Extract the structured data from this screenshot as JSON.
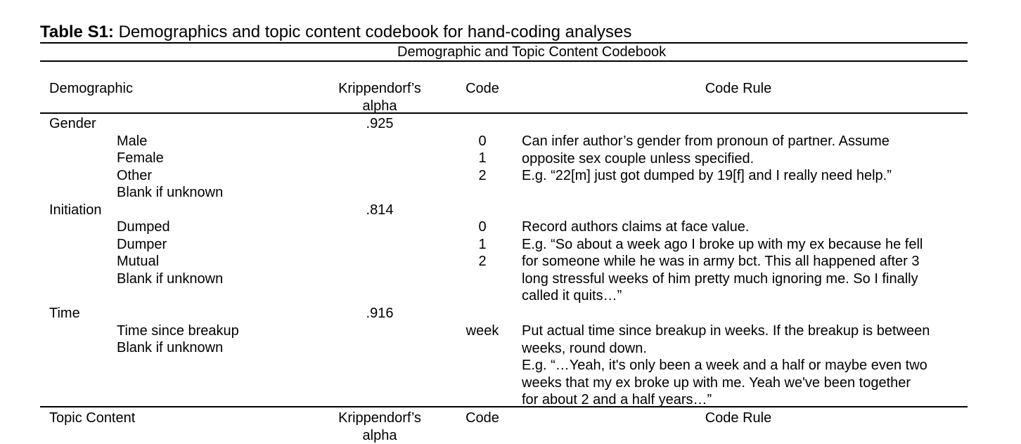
{
  "table_label": "Table S1:",
  "table_title": "Demographics and topic content codebook for hand-coding analyses",
  "subtitle": "Demographic and Topic Content Codebook",
  "header": {
    "col_demographic": "Demographic",
    "col_alpha_line1": "Krippendorf’s",
    "col_alpha_line2": "alpha",
    "col_code": "Code",
    "col_rule": "Code Rule"
  },
  "gender": {
    "name": "Gender",
    "alpha": ".925",
    "options": [
      {
        "label": "Male",
        "code": "0"
      },
      {
        "label": "Female",
        "code": "1"
      },
      {
        "label": "Other",
        "code": "2"
      },
      {
        "label": "Blank if unknown",
        "code": ""
      }
    ],
    "rule_lines": [
      "Can infer author’s gender from pronoun of partner. Assume",
      "opposite sex couple unless specified.",
      "E.g. “22[m] just got dumped by 19[f] and I really need help.”"
    ]
  },
  "initiation": {
    "name": "Initiation",
    "alpha": ".814",
    "options": [
      {
        "label": "Dumped",
        "code": "0"
      },
      {
        "label": "Dumper",
        "code": "1"
      },
      {
        "label": "Mutual",
        "code": "2"
      },
      {
        "label": "Blank if unknown",
        "code": ""
      }
    ],
    "rule_lines": [
      "Record authors claims at face value.",
      "E.g. “So about a week ago I broke up with my ex because he fell",
      "for someone while he was in army bct. This all happened after 3",
      "long stressful weeks of him pretty much ignoring me. So I finally",
      "called it quits…”"
    ]
  },
  "time": {
    "name": "Time",
    "alpha": ".916",
    "options": [
      {
        "label": "Time since breakup",
        "code": "week"
      },
      {
        "label": "Blank if unknown",
        "code": ""
      }
    ],
    "rule_lines": [
      "Put actual time since breakup in weeks. If the breakup is between",
      "weeks, round down.",
      "E.g. “…Yeah, it's only been a week and a half or maybe even two",
      "weeks that my ex broke up with me. Yeah we've been together",
      "for about 2 and a half years…”"
    ]
  },
  "topic_header": {
    "col_topic": "Topic Content",
    "col_alpha_line1": "Krippendorf’s",
    "col_alpha_line2": "alpha",
    "col_code": "Code",
    "col_rule": "Code Rule"
  }
}
